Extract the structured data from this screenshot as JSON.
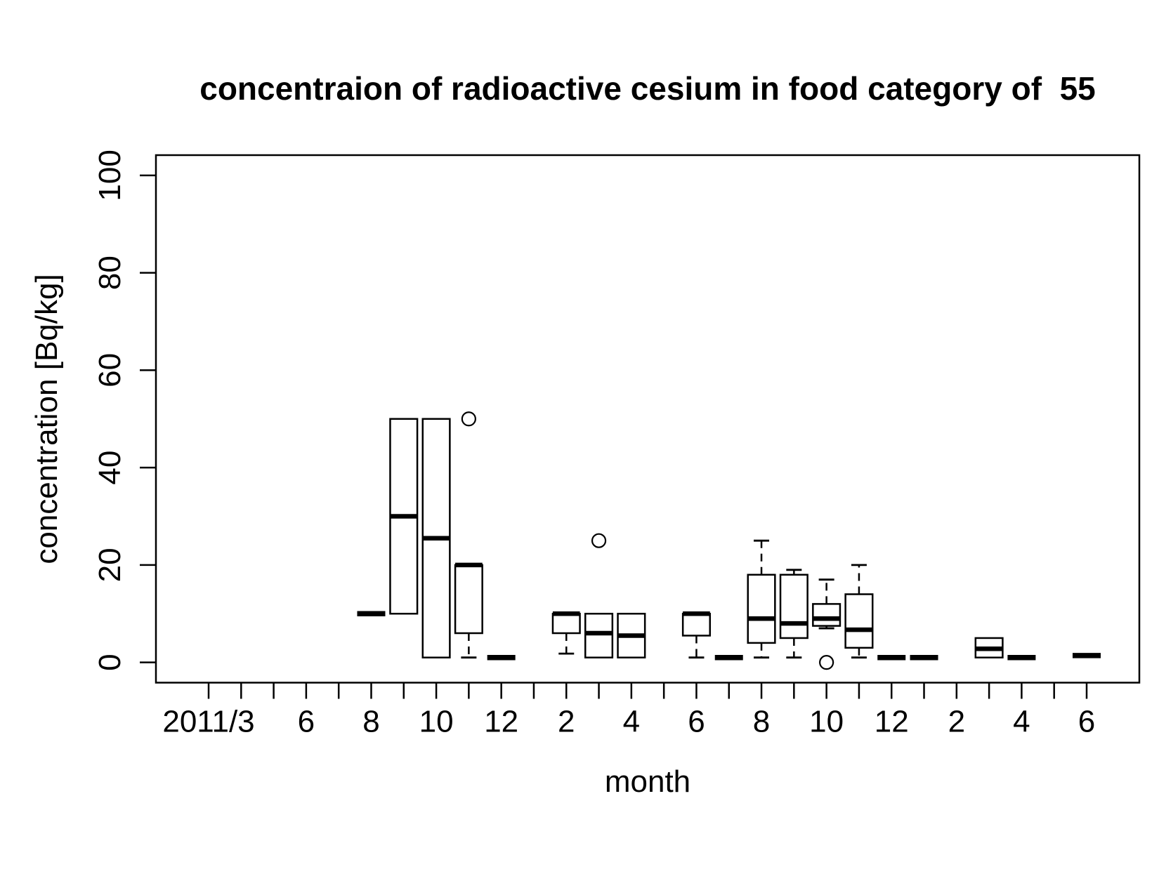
{
  "chart_data": {
    "type": "boxplot",
    "title": "concentraion of radioactive cesium in food category of  55",
    "xlabel": "month",
    "ylabel": "concentration [Bq/kg]",
    "ylim": [
      0,
      100
    ],
    "yticks": [
      0,
      20,
      40,
      60,
      80,
      100
    ],
    "grid": false,
    "x_month_count": 28,
    "x_first_month": "2011/3",
    "x_last_month": "2013/6",
    "xtick_labels": [
      {
        "pos": 1,
        "label": "2011/3"
      },
      {
        "pos": 4,
        "label": "6"
      },
      {
        "pos": 6,
        "label": "8"
      },
      {
        "pos": 8,
        "label": "10"
      },
      {
        "pos": 10,
        "label": "12"
      },
      {
        "pos": 12,
        "label": "2"
      },
      {
        "pos": 14,
        "label": "4"
      },
      {
        "pos": 16,
        "label": "6"
      },
      {
        "pos": 18,
        "label": "8"
      },
      {
        "pos": 20,
        "label": "10"
      },
      {
        "pos": 22,
        "label": "12"
      },
      {
        "pos": 24,
        "label": "2"
      },
      {
        "pos": 26,
        "label": "4"
      },
      {
        "pos": 28,
        "label": "6"
      }
    ],
    "boxes": [
      {
        "pos": 6,
        "month": "2011/8",
        "single": 10
      },
      {
        "pos": 7,
        "month": "2011/9",
        "q1": 10,
        "median": 30,
        "q3": 50,
        "lo": 10,
        "hi": 50
      },
      {
        "pos": 8,
        "month": "2011/10",
        "q1": 1,
        "median": 25.5,
        "q3": 50,
        "lo": 1,
        "hi": 50
      },
      {
        "pos": 9,
        "month": "2011/11",
        "q1": 6,
        "median": 20,
        "q3": 20,
        "lo": 1,
        "hi": 20,
        "outliers": [
          50
        ]
      },
      {
        "pos": 10,
        "month": "2011/12",
        "single": 1
      },
      {
        "pos": 12,
        "month": "2012/2",
        "q1": 6,
        "median": 10,
        "q3": 10,
        "lo": 1.8,
        "hi": 10
      },
      {
        "pos": 13,
        "month": "2012/3",
        "q1": 1,
        "median": 6,
        "q3": 10,
        "lo": 1,
        "hi": 10,
        "outliers": [
          25
        ]
      },
      {
        "pos": 14,
        "month": "2012/4",
        "q1": 1,
        "median": 5.5,
        "q3": 10,
        "lo": 1,
        "hi": 10
      },
      {
        "pos": 16,
        "month": "2012/6",
        "q1": 5.5,
        "median": 10,
        "q3": 10,
        "lo": 1,
        "hi": 10
      },
      {
        "pos": 17,
        "month": "2012/7",
        "single": 1
      },
      {
        "pos": 18,
        "month": "2012/8",
        "q1": 4,
        "median": 9,
        "q3": 18,
        "lo": 1,
        "hi": 25
      },
      {
        "pos": 19,
        "month": "2012/9",
        "q1": 5,
        "median": 8,
        "q3": 18,
        "lo": 1,
        "hi": 19
      },
      {
        "pos": 20,
        "month": "2012/10",
        "q1": 7.5,
        "median": 9,
        "q3": 12,
        "lo": 7,
        "hi": 17,
        "outliers": [
          0
        ]
      },
      {
        "pos": 21,
        "month": "2012/11",
        "q1": 3,
        "median": 6.7,
        "q3": 14,
        "lo": 1,
        "hi": 20
      },
      {
        "pos": 22,
        "month": "2012/12",
        "single": 1
      },
      {
        "pos": 23,
        "month": "2013/1",
        "single": 1
      },
      {
        "pos": 25,
        "month": "2013/3",
        "q1": 1,
        "median": 2.8,
        "q3": 5,
        "lo": 1,
        "hi": 5
      },
      {
        "pos": 26,
        "month": "2013/4",
        "single": 1
      },
      {
        "pos": 28,
        "month": "2013/6",
        "single": 1.4
      }
    ],
    "colors": {
      "foreground": "#000000",
      "background": "#ffffff"
    }
  }
}
